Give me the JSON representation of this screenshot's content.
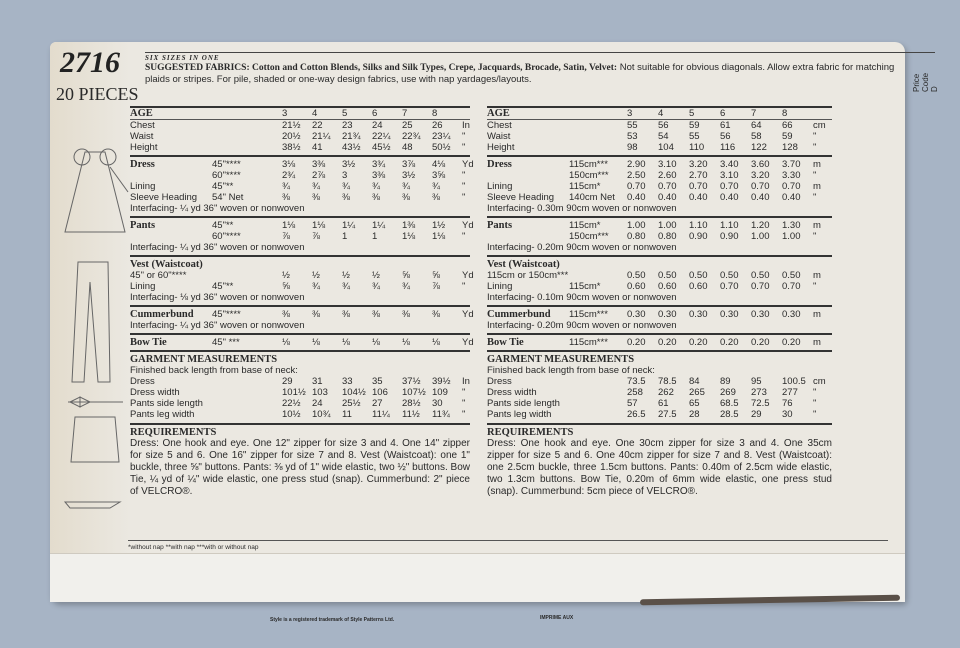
{
  "header": {
    "pattern_number": "2716",
    "pieces": "20 PIECES",
    "sizes_banner": "SIX SIZES IN ONE",
    "price_code": "Price Code D",
    "fabrics_label": "SUGGESTED FABRICS: Cotton and Cotton Blends, Silks and Silk Types, Crepe, Jacquards, Brocade, Satin, Velvet:",
    "fabrics_text": " Not suitable for obvious diagonals. Allow extra fabric for matching plaids or stripes. For pile, shaded or one-way design fabrics, use with nap yardages/layouts."
  },
  "imperial": {
    "sections": [
      {
        "rows": [
          {
            "label": "AGE",
            "fabric": "",
            "values": [
              "3",
              "4",
              "5",
              "6",
              "7",
              "8"
            ],
            "unit": "",
            "bold": true
          },
          {
            "label": "Chest",
            "fabric": "",
            "values": [
              "21½",
              "22",
              "23",
              "24",
              "25",
              "26"
            ],
            "unit": "In"
          },
          {
            "label": "Waist",
            "fabric": "",
            "values": [
              "20½",
              "21¼",
              "21¾",
              "22¼",
              "22¾",
              "23¼"
            ],
            "unit": "\""
          },
          {
            "label": "Height",
            "fabric": "",
            "values": [
              "38½",
              "41",
              "43½",
              "45½",
              "48",
              "50½"
            ],
            "unit": "\""
          }
        ]
      },
      {
        "rows": [
          {
            "label": "Dress",
            "fabric": "45\"****",
            "values": [
              "3⅛",
              "3⅜",
              "3½",
              "3¾",
              "3⅞",
              "4⅛"
            ],
            "unit": "Yd",
            "bold": true
          },
          {
            "label": "",
            "fabric": "60\"****",
            "values": [
              "2¾",
              "2⅞",
              "3",
              "3⅜",
              "3½",
              "3⅝"
            ],
            "unit": "\""
          },
          {
            "label": "Lining",
            "fabric": "45\"**",
            "values": [
              "¾",
              "¾",
              "¾",
              "¾",
              "¾",
              "¾"
            ],
            "unit": "\""
          },
          {
            "label": "Sleeve Heading",
            "fabric": "54\" Net",
            "values": [
              "⅜",
              "⅜",
              "⅜",
              "⅜",
              "⅜",
              "⅜"
            ],
            "unit": "\""
          }
        ],
        "note": "Interfacing- ¼ yd 36\" woven or nonwoven"
      },
      {
        "rows": [
          {
            "label": "Pants",
            "fabric": "45\"**",
            "values": [
              "1⅛",
              "1⅛",
              "1¼",
              "1¼",
              "1⅜",
              "1½"
            ],
            "unit": "Yd",
            "bold": true
          },
          {
            "label": "",
            "fabric": "60\"****",
            "values": [
              "⅞",
              "⅞",
              "1",
              "1",
              "1⅛",
              "1⅛"
            ],
            "unit": "\""
          }
        ],
        "note": "Interfacing- ¼ yd 36\" woven or nonwoven"
      },
      {
        "title": "Vest (Waistcoat)",
        "rows": [
          {
            "label": "45\" or 60\"****",
            "fabric": "",
            "values": [
              "½",
              "½",
              "½",
              "½",
              "⅝",
              "⅝"
            ],
            "unit": "Yd"
          },
          {
            "label": "Lining",
            "fabric": "45\"**",
            "values": [
              "⅝",
              "¾",
              "¾",
              "¾",
              "¾",
              "⅞"
            ],
            "unit": "\""
          }
        ],
        "note": "Interfacing- ⅛ yd 36\" woven or nonwoven"
      },
      {
        "rows": [
          {
            "label": "Cummerbund",
            "fabric": "45\"****",
            "values": [
              "⅜",
              "⅜",
              "⅜",
              "⅜",
              "⅜",
              "⅜"
            ],
            "unit": "Yd",
            "bold": true
          }
        ],
        "note": "Interfacing- ¼ yd 36\" woven or nonwoven"
      },
      {
        "rows": [
          {
            "label": "Bow Tie",
            "fabric": "45\" ***",
            "values": [
              "⅛",
              "⅛",
              "⅛",
              "⅛",
              "⅛",
              "⅛"
            ],
            "unit": "Yd",
            "bold": true
          }
        ]
      },
      {
        "title": "GARMENT MEASUREMENTS",
        "subtitle": "Finished back length from base of neck:",
        "rows": [
          {
            "label": "Dress",
            "fabric": "",
            "values": [
              "29",
              "31",
              "33",
              "35",
              "37½",
              "39½"
            ],
            "unit": "In"
          },
          {
            "label": "Dress width",
            "fabric": "",
            "values": [
              "101½",
              "103",
              "104½",
              "106",
              "107½",
              "109"
            ],
            "unit": "\""
          },
          {
            "label": "Pants side length",
            "fabric": "",
            "values": [
              "22½",
              "24",
              "25½",
              "27",
              "28½",
              "30"
            ],
            "unit": "\""
          },
          {
            "label": "Pants leg width",
            "fabric": "",
            "values": [
              "10½",
              "10¾",
              "11",
              "11¼",
              "11½",
              "11¾"
            ],
            "unit": "\""
          }
        ]
      }
    ],
    "requirements_title": "REQUIREMENTS",
    "requirements": "Dress: One hook and eye. One 12\" zipper for size 3 and 4. One 14\" zipper for size 5 and 6. One 16\" zipper for size 7 and 8. Vest (Waistcoat): one 1\" buckle, three ⅝\" buttons. Pants: ⅜ yd of 1\" wide elastic, two ½\" buttons. Bow Tie, ¼ yd of ¼\" wide elastic, one press stud (snap). Cummerbund: 2\" piece of VELCRO®."
  },
  "metric": {
    "sections": [
      {
        "rows": [
          {
            "label": "AGE",
            "fabric": "",
            "values": [
              "3",
              "4",
              "5",
              "6",
              "7",
              "8"
            ],
            "unit": "",
            "bold": true
          },
          {
            "label": "Chest",
            "fabric": "",
            "values": [
              "55",
              "56",
              "59",
              "61",
              "64",
              "66"
            ],
            "unit": "cm"
          },
          {
            "label": "Waist",
            "fabric": "",
            "values": [
              "53",
              "54",
              "55",
              "56",
              "58",
              "59"
            ],
            "unit": "\""
          },
          {
            "label": "Height",
            "fabric": "",
            "values": [
              "98",
              "104",
              "110",
              "116",
              "122",
              "128"
            ],
            "unit": "\""
          }
        ]
      },
      {
        "rows": [
          {
            "label": "Dress",
            "fabric": "115cm***",
            "values": [
              "2.90",
              "3.10",
              "3.20",
              "3.40",
              "3.60",
              "3.70"
            ],
            "unit": "m",
            "bold": true
          },
          {
            "label": "",
            "fabric": "150cm***",
            "values": [
              "2.50",
              "2.60",
              "2.70",
              "3.10",
              "3.20",
              "3.30"
            ],
            "unit": "\""
          },
          {
            "label": "Lining",
            "fabric": "115cm*",
            "values": [
              "0.70",
              "0.70",
              "0.70",
              "0.70",
              "0.70",
              "0.70"
            ],
            "unit": "m"
          },
          {
            "label": "Sleeve Heading",
            "fabric": "140cm Net",
            "values": [
              "0.40",
              "0.40",
              "0.40",
              "0.40",
              "0.40",
              "0.40"
            ],
            "unit": "\""
          }
        ],
        "note": "Interfacing- 0.30m 90cm woven or nonwoven"
      },
      {
        "rows": [
          {
            "label": "Pants",
            "fabric": "115cm*",
            "values": [
              "1.00",
              "1.00",
              "1.10",
              "1.10",
              "1.20",
              "1.30"
            ],
            "unit": "m",
            "bold": true
          },
          {
            "label": "",
            "fabric": "150cm***",
            "values": [
              "0.80",
              "0.80",
              "0.90",
              "0.90",
              "1.00",
              "1.00"
            ],
            "unit": "\""
          }
        ],
        "note": "Interfacing- 0.20m 90cm woven or nonwoven"
      },
      {
        "title": "Vest (Waistcoat)",
        "rows": [
          {
            "label": "115cm or 150cm***",
            "fabric": "",
            "values": [
              "0.50",
              "0.50",
              "0.50",
              "0.50",
              "0.50",
              "0.50"
            ],
            "unit": "m"
          },
          {
            "label": "Lining",
            "fabric": "115cm*",
            "values": [
              "0.60",
              "0.60",
              "0.60",
              "0.70",
              "0.70",
              "0.70"
            ],
            "unit": "\""
          }
        ],
        "note": "Interfacing- 0.10m 90cm woven or nonwoven"
      },
      {
        "rows": [
          {
            "label": "Cummerbund",
            "fabric": "115cm***",
            "values": [
              "0.30",
              "0.30",
              "0.30",
              "0.30",
              "0.30",
              "0.30"
            ],
            "unit": "m",
            "bold": true
          }
        ],
        "note": "Interfacing- 0.20m 90cm woven or nonwoven"
      },
      {
        "rows": [
          {
            "label": "Bow Tie",
            "fabric": "115cm***",
            "values": [
              "0.20",
              "0.20",
              "0.20",
              "0.20",
              "0.20",
              "0.20"
            ],
            "unit": "m",
            "bold": true
          }
        ]
      },
      {
        "title": "GARMENT MEASUREMENTS",
        "subtitle": "Finished back length from base of neck:",
        "rows": [
          {
            "label": "Dress",
            "fabric": "",
            "values": [
              "73.5",
              "78.5",
              "84",
              "89",
              "95",
              "100.5"
            ],
            "unit": "cm"
          },
          {
            "label": "Dress width",
            "fabric": "",
            "values": [
              "258",
              "262",
              "265",
              "269",
              "273",
              "277"
            ],
            "unit": "\""
          },
          {
            "label": "Pants side length",
            "fabric": "",
            "values": [
              "57",
              "61",
              "65",
              "68.5",
              "72.5",
              "76"
            ],
            "unit": "\""
          },
          {
            "label": "Pants leg width",
            "fabric": "",
            "values": [
              "26.5",
              "27.5",
              "28",
              "28.5",
              "29",
              "30"
            ],
            "unit": "\""
          }
        ]
      }
    ],
    "requirements_title": "REQUIREMENTS",
    "requirements": "Dress: One hook and eye. One 30cm zipper for size 3 and 4. One 35cm zipper for size 5 and 6. One 40cm zipper for size 7 and 8. Vest (Waistcoat): one 2.5cm buckle, three 1.5cm buttons. Pants: 0.40m of 2.5cm wide elastic, two 1.3cm buttons. Bow Tie, 0.20m of 6mm wide elastic, one press stud (snap). Cummerbund: 5cm piece of VELCRO®."
  },
  "footer": {
    "nap_key": "*without nap **with nap ***with or without nap",
    "trademark": "Style is a registered trademark of Style Patterns Ltd.",
    "imprime": "IMPRIME AUX"
  }
}
